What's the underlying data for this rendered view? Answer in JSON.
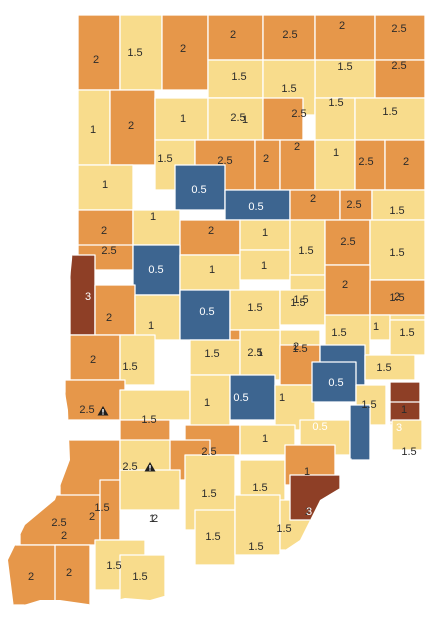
{
  "colors": {
    "0.5": "#3d6590",
    "1": "#f8dc8c",
    "1.5": "#f8dc8c",
    "2": "#e6974a",
    "2.5": "#e6974a",
    "3": "#8e3f26",
    "outline": "#ffffff",
    "warning_icon": "#1e1e1e"
  },
  "counties": [
    {
      "label": "2"
    },
    {
      "label": "1.5"
    },
    {
      "label": "2"
    },
    {
      "label": "2"
    },
    {
      "label": "2.5"
    },
    {
      "label": "2"
    },
    {
      "label": "2.5"
    },
    {
      "label": "1.5"
    },
    {
      "label": "1.5"
    },
    {
      "label": "2.5"
    },
    {
      "label": "1.5"
    },
    {
      "label": "2.5"
    },
    {
      "label": "1"
    },
    {
      "label": "2"
    },
    {
      "label": "1"
    },
    {
      "label": "1"
    },
    {
      "label": "2.5"
    },
    {
      "label": "1.5"
    },
    {
      "label": "1.5"
    },
    {
      "label": "1.5"
    },
    {
      "label": "2.5"
    },
    {
      "label": "2"
    },
    {
      "label": "2"
    },
    {
      "label": "1"
    },
    {
      "label": "2.5"
    },
    {
      "label": "2"
    },
    {
      "label": "1"
    },
    {
      "label": "0.5"
    },
    {
      "label": "0.5"
    },
    {
      "label": "2"
    },
    {
      "label": "2.5"
    },
    {
      "label": "1.5"
    },
    {
      "label": "2"
    },
    {
      "label": "1"
    },
    {
      "label": "2"
    },
    {
      "label": "1"
    },
    {
      "label": "1.5"
    },
    {
      "label": "2.5"
    },
    {
      "label": "1.5"
    },
    {
      "label": "2.5"
    },
    {
      "label": "0.5"
    },
    {
      "label": "1"
    },
    {
      "label": "1"
    },
    {
      "label": "1.5"
    },
    {
      "label": "1.5"
    },
    {
      "label": "3"
    },
    {
      "label": "2"
    },
    {
      "label": "1"
    },
    {
      "label": "0.5"
    },
    {
      "label": "1.5"
    },
    {
      "label": "1.5"
    },
    {
      "label": "2"
    },
    {
      "label": "2"
    },
    {
      "label": "1.5"
    },
    {
      "label": "1"
    },
    {
      "label": "1.5"
    },
    {
      "label": "2.5"
    },
    {
      "label": "1.5"
    },
    {
      "label": "2"
    },
    {
      "label": "1.5"
    },
    {
      "label": "1.5"
    },
    {
      "label": "1"
    },
    {
      "label": "2"
    },
    {
      "label": "0.5"
    },
    {
      "label": "1.5"
    },
    {
      "label": "2.5"
    },
    {
      "label": "1.5"
    },
    {
      "label": "1"
    },
    {
      "label": "0.5"
    },
    {
      "label": "1"
    },
    {
      "label": "0.5"
    },
    {
      "label": "1.5"
    },
    {
      "label": "1"
    },
    {
      "label": "3"
    },
    {
      "label": "3"
    },
    {
      "label": "2.5"
    },
    {
      "label": "2.5"
    },
    {
      "label": "1"
    },
    {
      "label": "1"
    },
    {
      "label": "0.5"
    },
    {
      "label": "1.5"
    },
    {
      "label": "2.5"
    },
    {
      "label": "1.5"
    },
    {
      "label": "2"
    },
    {
      "label": "1.5"
    },
    {
      "label": "1.5"
    },
    {
      "label": "2"
    },
    {
      "label": "2"
    },
    {
      "label": "2"
    },
    {
      "label": "1"
    },
    {
      "label": "1.5"
    },
    {
      "label": "1.5"
    },
    {
      "label": "1.5"
    },
    {
      "label": "3"
    },
    {
      "label": "2"
    },
    {
      "label": "2"
    },
    {
      "label": "1.5"
    },
    {
      "label": "1.5"
    }
  ],
  "warnings": [
    {
      "icon": "warning-icon"
    },
    {
      "icon": "warning-icon"
    }
  ]
}
